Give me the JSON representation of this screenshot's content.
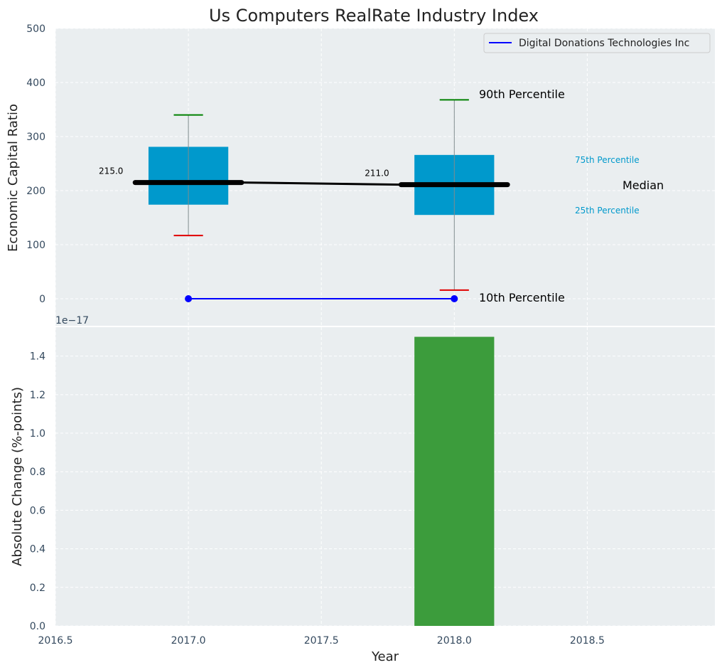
{
  "chart_data": {
    "title": "Us Computers RealRate Industry Index",
    "top": {
      "type": "box",
      "ylabel": "Economic Capital Ratio",
      "ylim": [
        -50,
        500
      ],
      "yticks": [
        0,
        100,
        200,
        300,
        400,
        500
      ],
      "xlim": [
        2016.5,
        2018.98
      ],
      "boxes": [
        {
          "x": 2017,
          "p10": 117,
          "p25": 174,
          "median": 215,
          "p75": 281,
          "p90": 340,
          "label": "215.0"
        },
        {
          "x": 2018,
          "p10": 16,
          "p25": 155,
          "median": 211,
          "p75": 266,
          "p90": 368,
          "label": "211.0"
        }
      ],
      "series": [
        {
          "name": "Digital Donations Technologies Inc",
          "x": [
            2017,
            2018
          ],
          "values": [
            0,
            0
          ]
        }
      ],
      "annotations": {
        "p90": "90th Percentile",
        "p75": "75th Percentile",
        "median": "Median",
        "p25": "25th Percentile",
        "p10": "10th Percentile"
      },
      "legend_position": "top-right",
      "grid": true
    },
    "bottom": {
      "type": "bar",
      "ylabel": "Absolute Change (%-points)",
      "xlabel": "Year",
      "offset_text": "1e−17",
      "ylim": [
        0,
        1.55
      ],
      "yticks": [
        "0.0",
        "0.2",
        "0.4",
        "0.6",
        "0.8",
        "1.0",
        "1.2",
        "1.4"
      ],
      "xticks": [
        "2016.5",
        "2017.0",
        "2017.5",
        "2018.0",
        "2018.5"
      ],
      "bars": [
        {
          "x": 2018,
          "value": 1.5
        }
      ],
      "grid": true
    },
    "colors": {
      "panel_bg": "#eaeef0",
      "box": "#0099cc",
      "median": "#000000",
      "whisker": "#7f8c8d",
      "p90_cap": "#008000",
      "p10_cap": "#e00000",
      "series_line": "#0000ff",
      "bar": "#3c9c3c",
      "anno_blue": "#0099cc"
    }
  }
}
